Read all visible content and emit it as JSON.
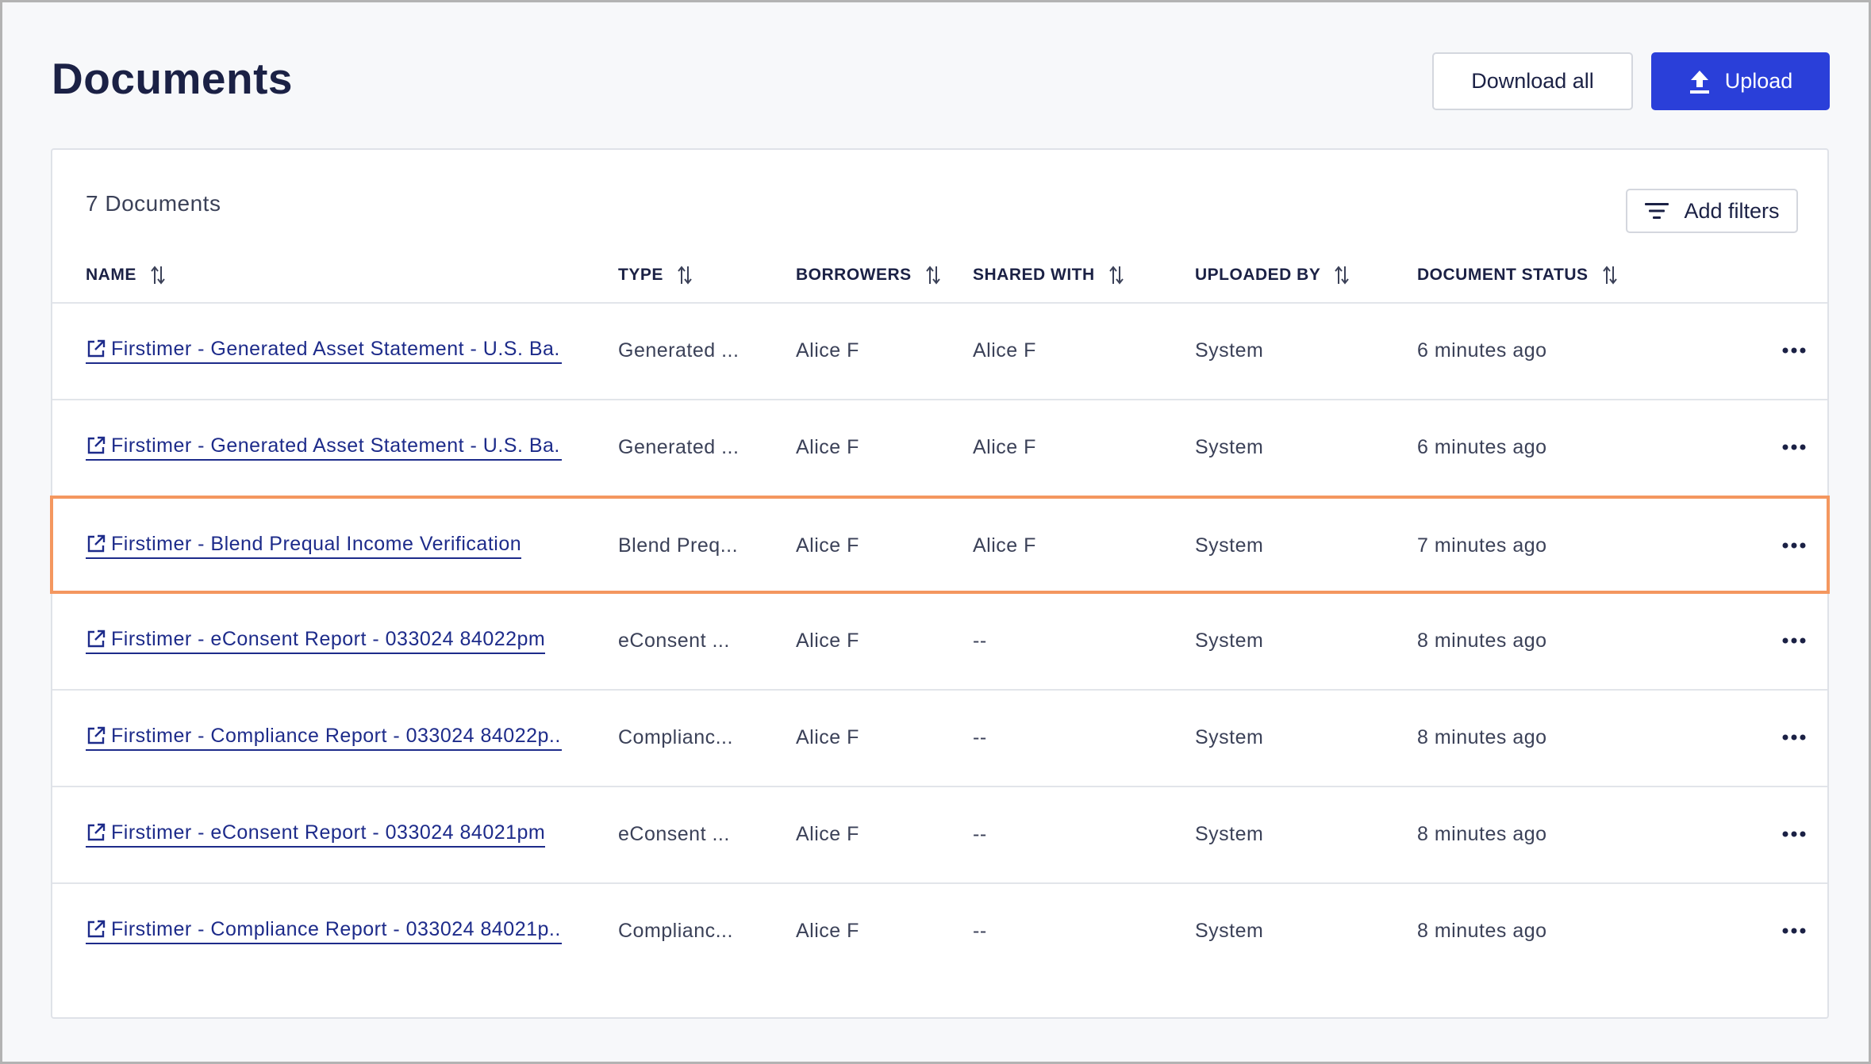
{
  "page": {
    "title": "Documents",
    "download_all_label": "Download all",
    "upload_label": "Upload"
  },
  "table": {
    "count_label": "7 Documents",
    "add_filters_label": "Add filters",
    "columns": [
      {
        "key": "name",
        "label": "NAME"
      },
      {
        "key": "type",
        "label": "TYPE"
      },
      {
        "key": "borrowers",
        "label": "BORROWERS"
      },
      {
        "key": "shared_with",
        "label": "SHARED WITH"
      },
      {
        "key": "uploaded_by",
        "label": "UPLOADED BY"
      },
      {
        "key": "status",
        "label": "DOCUMENT STATUS"
      }
    ],
    "rows": [
      {
        "name": "Firstimer - Generated Asset Statement - U.S. Ba...",
        "type": "Generated ...",
        "borrowers": "Alice F",
        "shared_with": "Alice F",
        "uploaded_by": "System",
        "status": "6 minutes ago"
      },
      {
        "name": "Firstimer - Generated Asset Statement - U.S. Ba...",
        "type": "Generated ...",
        "borrowers": "Alice F",
        "shared_with": "Alice F",
        "uploaded_by": "System",
        "status": "6 minutes ago"
      },
      {
        "name": "Firstimer - Blend Prequal Income Verification",
        "type": "Blend Preq...",
        "borrowers": "Alice F",
        "shared_with": "Alice F",
        "uploaded_by": "System",
        "status": "7 minutes ago",
        "highlighted": true
      },
      {
        "name": "Firstimer - eConsent Report - 033024 84022pm",
        "type": "eConsent ...",
        "borrowers": "Alice F",
        "shared_with": "--",
        "uploaded_by": "System",
        "status": "8 minutes ago"
      },
      {
        "name": "Firstimer - Compliance Report - 033024 84022p...",
        "type": "Complianc...",
        "borrowers": "Alice F",
        "shared_with": "--",
        "uploaded_by": "System",
        "status": "8 minutes ago"
      },
      {
        "name": "Firstimer - eConsent Report - 033024 84021pm",
        "type": "eConsent ...",
        "borrowers": "Alice F",
        "shared_with": "--",
        "uploaded_by": "System",
        "status": "8 minutes ago"
      },
      {
        "name": "Firstimer - Compliance Report - 033024 84021p...",
        "type": "Complianc...",
        "borrowers": "Alice F",
        "shared_with": "--",
        "uploaded_by": "System",
        "status": "8 minutes ago"
      }
    ]
  },
  "icons": {
    "upload": "upload-icon",
    "filter": "filter-icon",
    "sort": "sort-icon",
    "external_link": "external-link-icon",
    "more": "more-options-icon"
  },
  "colors": {
    "primary": "#2a3fd9",
    "link": "#1d2b8a",
    "highlight_border": "#f4975f",
    "text": "#1b2145"
  }
}
